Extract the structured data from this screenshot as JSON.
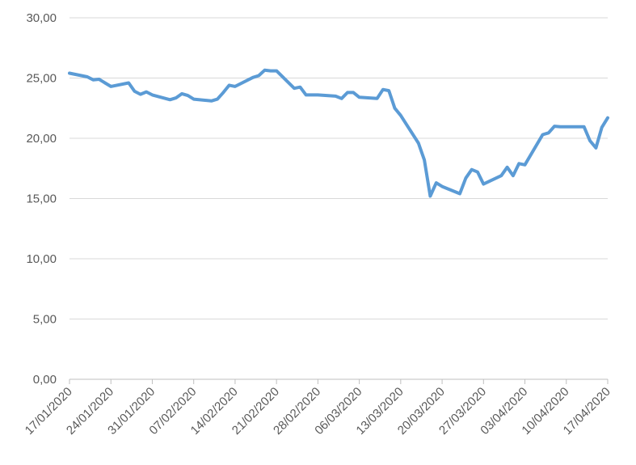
{
  "chart_data": {
    "type": "line",
    "title": "",
    "xlabel": "",
    "ylabel": "",
    "ylim": [
      0,
      30
    ],
    "yticks": [
      "0,00",
      "5,00",
      "10,00",
      "15,00",
      "20,00",
      "25,00",
      "30,00"
    ],
    "ytick_values": [
      0,
      5,
      10,
      15,
      20,
      25,
      30
    ],
    "grid": true,
    "legend": "none",
    "line_color": "#5b9bd5",
    "x_start": "17/01/2020",
    "x_end": "17/04/2020",
    "x_ticks": [
      "17/01/2020",
      "24/01/2020",
      "31/01/2020",
      "07/02/2020",
      "14/02/2020",
      "21/02/2020",
      "28/02/2020",
      "06/03/2020",
      "13/03/2020",
      "20/03/2020",
      "27/03/2020",
      "03/04/2020",
      "10/04/2020",
      "17/04/2020"
    ],
    "series": [
      {
        "x": [
          "17/01/2020",
          "20/01/2020",
          "21/01/2020",
          "22/01/2020",
          "23/01/2020",
          "24/01/2020",
          "27/01/2020",
          "28/01/2020",
          "29/01/2020",
          "30/01/2020",
          "31/01/2020",
          "03/02/2020",
          "04/02/2020",
          "05/02/2020",
          "06/02/2020",
          "07/02/2020",
          "10/02/2020",
          "11/02/2020",
          "12/02/2020",
          "13/02/2020",
          "14/02/2020",
          "17/02/2020",
          "18/02/2020",
          "19/02/2020",
          "20/02/2020",
          "21/02/2020",
          "24/02/2020",
          "25/02/2020",
          "26/02/2020",
          "27/02/2020",
          "28/02/2020",
          "02/03/2020",
          "03/03/2020",
          "04/03/2020",
          "05/03/2020",
          "06/03/2020",
          "09/03/2020",
          "10/03/2020",
          "11/03/2020",
          "12/03/2020",
          "13/03/2020",
          "16/03/2020",
          "17/03/2020",
          "18/03/2020",
          "19/03/2020",
          "20/03/2020",
          "23/03/2020",
          "24/03/2020",
          "25/03/2020",
          "26/03/2020",
          "27/03/2020",
          "30/03/2020",
          "31/03/2020",
          "01/04/2020",
          "02/04/2020",
          "03/04/2020",
          "06/04/2020",
          "07/04/2020",
          "08/04/2020",
          "09/04/2020",
          "10/04/2020",
          "13/04/2020",
          "14/04/2020",
          "15/04/2020",
          "16/04/2020",
          "17/04/2020"
        ],
        "y": [
          25.4,
          25.1,
          24.85,
          24.9,
          24.6,
          24.3,
          24.6,
          23.9,
          23.65,
          23.85,
          23.6,
          23.2,
          23.35,
          23.7,
          23.55,
          23.25,
          23.1,
          23.25,
          23.8,
          24.4,
          24.3,
          25.05,
          25.2,
          25.65,
          25.6,
          25.6,
          24.15,
          24.25,
          23.6,
          23.6,
          23.6,
          23.5,
          23.3,
          23.8,
          23.8,
          23.4,
          23.3,
          24.05,
          23.95,
          22.5,
          21.9,
          19.6,
          18.2,
          15.2,
          16.3,
          16.0,
          15.4,
          16.7,
          17.4,
          17.2,
          16.2,
          16.9,
          17.6,
          16.9,
          17.9,
          17.8,
          20.3,
          20.45,
          21.0,
          20.95,
          20.95,
          20.95,
          19.8,
          19.2,
          20.9,
          21.7
        ]
      }
    ]
  }
}
